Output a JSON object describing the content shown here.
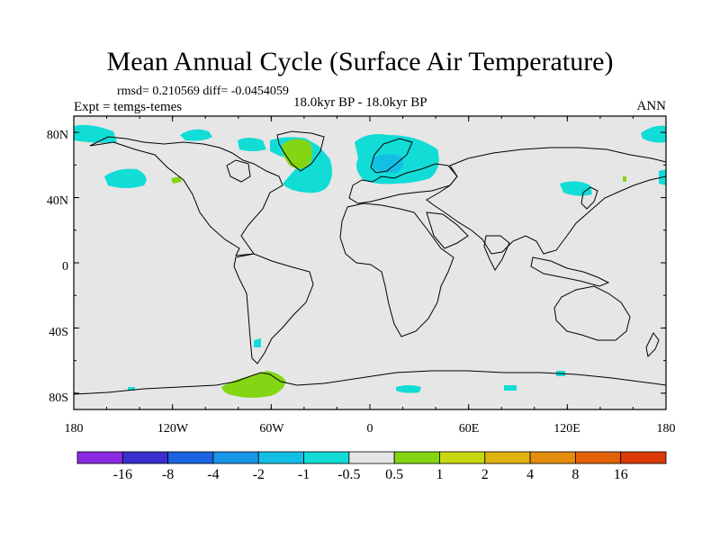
{
  "figure": {
    "title": "Mean Annual Cycle (Surface Air Temperature)",
    "stats_text": "rmsd= 0.210569 diff= -0.0454059",
    "experiment_label": "Expt = temgs-temes",
    "period_label": "18.0kyr BP - 18.0kyr BP",
    "season_label": "ANN"
  },
  "map": {
    "background_color": "#e6e6e6",
    "lat_ticks": [
      "80N",
      "40N",
      "0",
      "40S",
      "80S"
    ],
    "lon_ticks": [
      "180",
      "120W",
      "60W",
      "0",
      "60E",
      "120E",
      "180"
    ]
  },
  "colorbar": {
    "colors": [
      "#8a2be2",
      "#3a2fd0",
      "#1c64e0",
      "#1896e8",
      "#14bfe6",
      "#12dcd6",
      "#e6e6e6",
      "#84d614",
      "#c8d810",
      "#e0b40e",
      "#e48c0c",
      "#e2620a",
      "#dc3a08"
    ],
    "labels": [
      "-16",
      "-8",
      "-4",
      "-2",
      "-1",
      "-0.5",
      "0.5",
      "1",
      "2",
      "4",
      "8",
      "16"
    ]
  },
  "chart_data": {
    "type": "heatmap",
    "title": "Mean Annual Cycle (Surface Air Temperature)",
    "subtitle": "18.0kyr BP - 18.0kyr BP",
    "variable": "Surface Air Temperature difference",
    "rmsd": 0.210569,
    "diff": -0.0454059,
    "x_range": [
      -180,
      180
    ],
    "y_range": [
      -90,
      90
    ],
    "levels": [
      -16,
      -8,
      -4,
      -2,
      -1,
      -0.5,
      0.5,
      1,
      2,
      4,
      8,
      16
    ]
  }
}
